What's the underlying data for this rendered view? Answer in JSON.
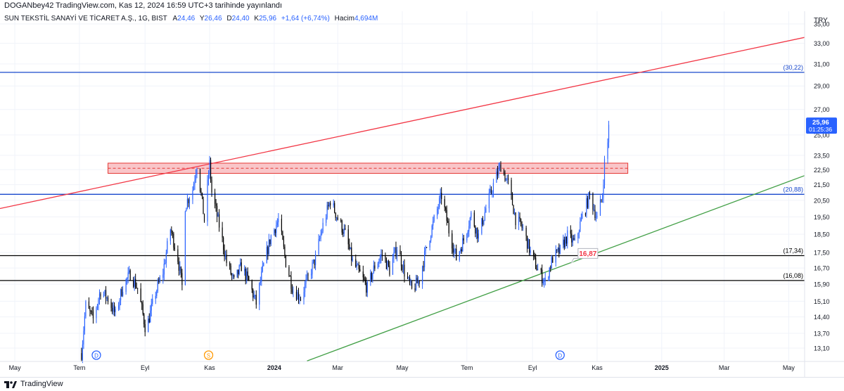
{
  "header": {
    "published": "DOGANbey42 TradingView.com, Kas 12, 2024 16:59 UTC+3 tarihinde yayınlandı"
  },
  "symbol": {
    "name": "SUN TEKSTİL SANAYİ VE TİCARET A.Ş., 1G, BIST",
    "a_label": "A",
    "a_value": "24,46",
    "y_label": "Y",
    "y_value": "26,46",
    "d_label": "D",
    "d_value": "24,40",
    "k_label": "K",
    "k_value": "25,96",
    "change": "+1,64 (+6,74%)",
    "volume_label": "Hacim",
    "volume_value": "4,694M"
  },
  "currency": "TRY",
  "footer": {
    "brand": "TradingView",
    "logo_icon": "tradingview-logo-icon"
  },
  "colors": {
    "up": "#2962ff",
    "down": "#000000",
    "red_line": "#f23645",
    "green_line": "#43a047",
    "blue_level": "#1848cc",
    "zone_fill": "#f7b8bb",
    "zone_border": "#e53935"
  },
  "chart_data": {
    "type": "candlestick",
    "y_axis": {
      "ticks": [
        35,
        33,
        31,
        29,
        27,
        25,
        23.5,
        22.5,
        21.5,
        20.5,
        19.5,
        18.5,
        17.5,
        16.7,
        15.9,
        15.1,
        14.4,
        13.7,
        13.1
      ],
      "tick_labels": [
        "35,00",
        "33,00",
        "31,00",
        "29,00",
        "27,00",
        "25,00",
        "23,50",
        "22,50",
        "21,50",
        "20,50",
        "19,50",
        "18,50",
        "17,50",
        "16,70",
        "15,90",
        "15,10",
        "14,40",
        "13,70",
        "13,10"
      ],
      "scale": "log"
    },
    "x_axis": {
      "ticks": [
        "2023-05-01",
        "2023-07-01",
        "2023-09-01",
        "2023-11-01",
        "2024-01-01",
        "2024-03-01",
        "2024-05-01",
        "2024-07-01",
        "2024-09-01",
        "2024-11-01",
        "2025-01-01",
        "2025-03-01",
        "2025-05-01"
      ],
      "tick_labels": [
        "May",
        "Tem",
        "Eyl",
        "Kas",
        "2024",
        "Mar",
        "May",
        "Tem",
        "Eyl",
        "Kas",
        "2025",
        "Mar",
        "May"
      ],
      "range": [
        "2023-04-17",
        "2025-05-16"
      ]
    },
    "last_price": {
      "value": 25.96,
      "label": "25,96",
      "countdown": "01:25:36"
    },
    "horizontal_levels": [
      {
        "value": 30.22,
        "label": "(30,22)",
        "color": "#1848cc"
      },
      {
        "value": 20.88,
        "label": "(20,88)",
        "color": "#1848cc"
      },
      {
        "value": 17.34,
        "label": "(17,34)",
        "color": "#000000"
      },
      {
        "value": 16.08,
        "label": "(16,08)",
        "color": "#000000"
      }
    ],
    "resistance_zone": {
      "from": 22.25,
      "to": 22.95,
      "start": "2023-07-28",
      "end": "2024-11-30"
    },
    "trend_lines": [
      {
        "name": "",
        "color": "#f23645",
        "points": [
          [
            "2023-04-17",
            20.0
          ],
          [
            "2025-05-16",
            33.6
          ]
        ]
      },
      {
        "name": "",
        "color": "#43a047",
        "points": [
          [
            "2024-02-01",
            12.6
          ],
          [
            "2025-05-16",
            22.1
          ]
        ]
      }
    ],
    "callout": {
      "value": 16.87,
      "label": "16,87",
      "date": "2024-10-10"
    },
    "markers": [
      {
        "letter": "D",
        "date": "2023-07-17",
        "color": "#2962ff"
      },
      {
        "letter": "S",
        "date": "2023-10-31",
        "color": "#ff9800"
      },
      {
        "letter": "D",
        "date": "2024-09-27",
        "color": "#2962ff"
      }
    ],
    "price_path": [
      [
        "2023-07-03",
        12.9
      ],
      [
        "2023-07-07",
        14.9
      ],
      [
        "2023-07-14",
        14.3
      ],
      [
        "2023-07-21",
        15.6
      ],
      [
        "2023-07-28",
        15.2
      ],
      [
        "2023-08-04",
        14.5
      ],
      [
        "2023-08-11",
        15.8
      ],
      [
        "2023-08-18",
        16.4
      ],
      [
        "2023-08-25",
        15.7
      ],
      [
        "2023-09-01",
        14.0
      ],
      [
        "2023-09-04",
        14.2
      ],
      [
        "2023-09-11",
        15.5
      ],
      [
        "2023-09-18",
        16.5
      ],
      [
        "2023-09-25",
        18.8
      ],
      [
        "2023-10-02",
        17.2
      ],
      [
        "2023-10-06",
        15.8
      ],
      [
        "2023-10-09",
        20.2
      ],
      [
        "2023-10-16",
        21.2
      ],
      [
        "2023-10-20",
        22.9
      ],
      [
        "2023-10-27",
        19.3
      ],
      [
        "2023-11-01",
        22.9
      ],
      [
        "2023-11-03",
        21.0
      ],
      [
        "2023-11-10",
        19.0
      ],
      [
        "2023-11-17",
        17.0
      ],
      [
        "2023-11-24",
        16.0
      ],
      [
        "2023-12-01",
        16.8
      ],
      [
        "2023-12-08",
        16.0
      ],
      [
        "2023-12-15",
        15.0
      ],
      [
        "2023-12-22",
        16.8
      ],
      [
        "2023-12-29",
        18.4
      ],
      [
        "2024-01-05",
        19.3
      ],
      [
        "2024-01-12",
        17.0
      ],
      [
        "2024-01-19",
        15.6
      ],
      [
        "2024-01-26",
        15.3
      ],
      [
        "2024-02-02",
        16.2
      ],
      [
        "2024-02-09",
        17.2
      ],
      [
        "2024-02-16",
        19.0
      ],
      [
        "2024-02-23",
        20.5
      ],
      [
        "2024-03-01",
        19.4
      ],
      [
        "2024-03-08",
        18.5
      ],
      [
        "2024-03-15",
        17.0
      ],
      [
        "2024-03-22",
        16.4
      ],
      [
        "2024-03-29",
        15.7
      ],
      [
        "2024-04-05",
        16.8
      ],
      [
        "2024-04-12",
        17.4
      ],
      [
        "2024-04-19",
        16.6
      ],
      [
        "2024-04-26",
        17.8
      ],
      [
        "2024-05-03",
        16.5
      ],
      [
        "2024-05-10",
        15.6
      ],
      [
        "2024-05-17",
        16.1
      ],
      [
        "2024-05-24",
        17.8
      ],
      [
        "2024-05-31",
        19.3
      ],
      [
        "2024-06-07",
        20.8
      ],
      [
        "2024-06-14",
        18.7
      ],
      [
        "2024-06-21",
        17.2
      ],
      [
        "2024-06-28",
        18.2
      ],
      [
        "2024-07-05",
        19.6
      ],
      [
        "2024-07-12",
        18.4
      ],
      [
        "2024-07-19",
        20.0
      ],
      [
        "2024-07-26",
        21.5
      ],
      [
        "2024-08-02",
        22.8
      ],
      [
        "2024-08-09",
        21.5
      ],
      [
        "2024-08-16",
        19.4
      ],
      [
        "2024-08-23",
        18.8
      ],
      [
        "2024-08-30",
        17.5
      ],
      [
        "2024-09-06",
        16.6
      ],
      [
        "2024-09-13",
        16.0
      ],
      [
        "2024-09-20",
        17.2
      ],
      [
        "2024-09-27",
        17.6
      ],
      [
        "2024-10-04",
        18.4
      ],
      [
        "2024-10-11",
        18.0
      ],
      [
        "2024-10-18",
        19.5
      ],
      [
        "2024-10-25",
        20.8
      ],
      [
        "2024-11-01",
        19.4
      ],
      [
        "2024-11-06",
        20.8
      ],
      [
        "2024-11-08",
        23.0
      ],
      [
        "2024-11-11",
        24.4
      ],
      [
        "2024-11-12",
        25.96
      ]
    ]
  }
}
